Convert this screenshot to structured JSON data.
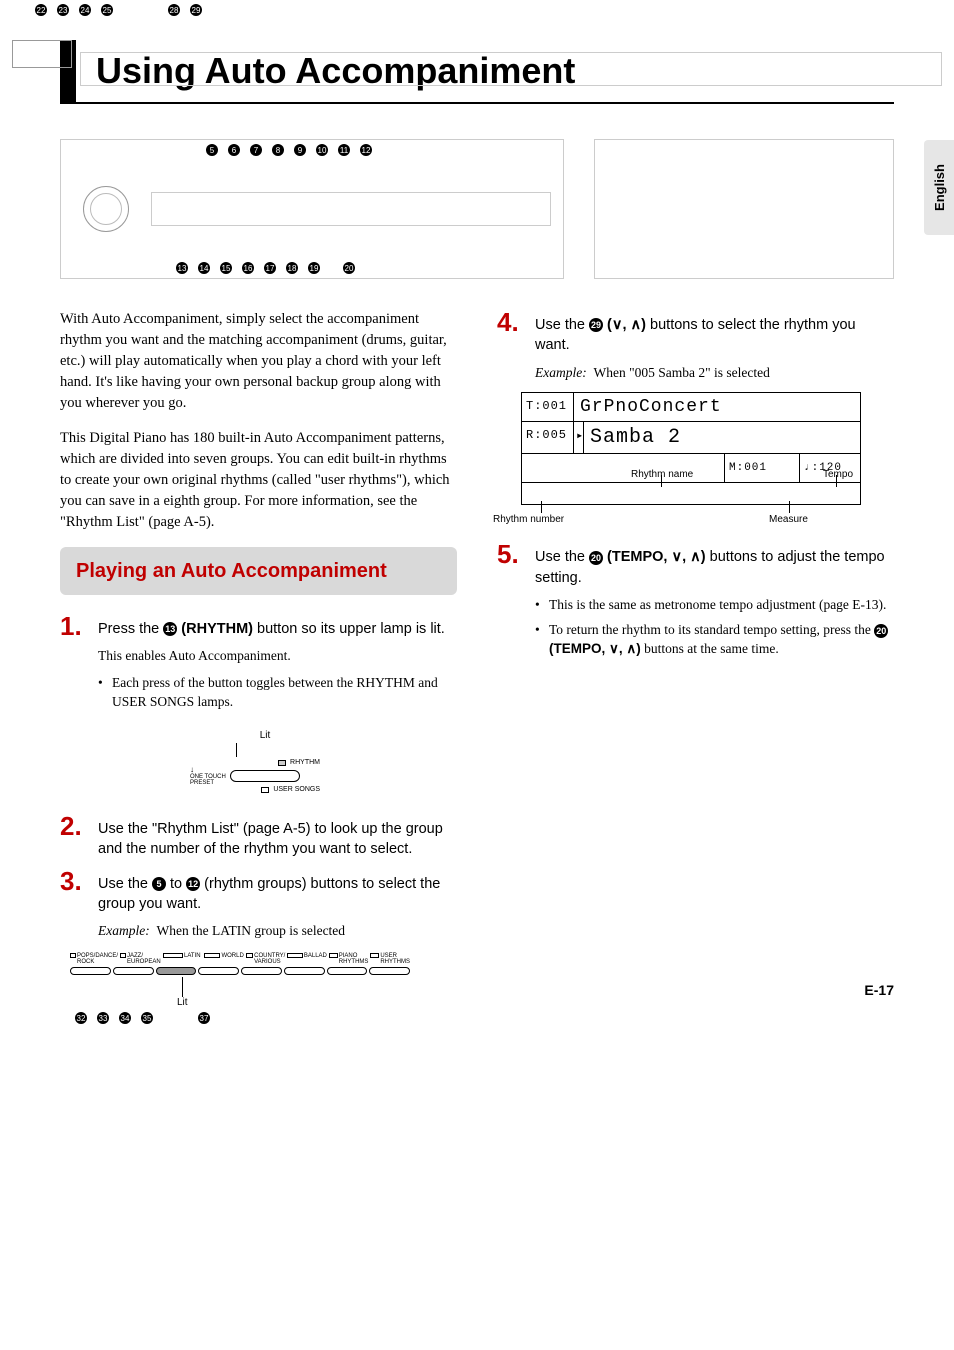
{
  "side_tab": "English",
  "title": "Using Auto Accompaniment",
  "panel_left": {
    "top_nums": [
      5,
      6,
      7,
      8,
      9,
      10,
      11,
      12
    ],
    "bot_nums": [
      13,
      14,
      15,
      16,
      17,
      18,
      19,
      20
    ]
  },
  "panel_right": {
    "top_nums": [
      22,
      23,
      24,
      25,
      28,
      29
    ],
    "bot_nums": [
      32,
      33,
      34,
      35,
      37
    ]
  },
  "intro_p1": "With Auto Accompaniment, simply select the accompaniment rhythm you want and the matching accompaniment (drums, guitar, etc.) will play automatically when you play a chord with your left hand. It's like having your own personal backup group along with you wherever you go.",
  "intro_p2": "This Digital Piano has 180 built-in Auto Accompaniment patterns, which are divided into seven groups. You can edit built-in rhythms to create your own original rhythms (called \"user rhythms\"), which you can save in a eighth group. For more information, see the \"Rhythm List\" (page A-5).",
  "section_head": "Playing an Auto Accompaniment",
  "step1": {
    "num": "1",
    "pre": "Press the ",
    "ref": "13",
    "bold": " (RHYTHM)",
    "post": " button so its upper lamp is lit.",
    "sub": "This enables Auto Accompaniment.",
    "bullet": "Each press of the button toggles between the RHYTHM and USER SONGS lamps."
  },
  "fig_rhythm_btn": {
    "lit": "Lit",
    "rhythm": "RHYTHM",
    "onetouch1": "ONE TOUCH",
    "onetouch2": "PRESET",
    "user": "USER SONGS"
  },
  "step2": {
    "num": "2",
    "text": "Use the \"Rhythm List\" (page A-5) to look up the group and the number of the rhythm you want to select."
  },
  "step3": {
    "num": "3",
    "pre": "Use the ",
    "ref1": "5",
    "mid": " to ",
    "ref2": "12",
    "post": " (rhythm groups) buttons to select the group you want.",
    "example_label": "Example:",
    "example_text": "When the LATIN group is selected"
  },
  "fig_groups": {
    "labels": [
      "POPS/DANCE/\nROCK",
      "JAZZ/\nEUROPEAN",
      "LATIN",
      "WORLD",
      "COUNTRY/\nVARIOUS",
      "BALLAD",
      "PIANO\nRHYTHMS",
      "USER\nRHYTHMS"
    ],
    "lit_index": 2,
    "lit": "Lit"
  },
  "step4": {
    "num": "4",
    "pre": "Use the ",
    "ref": "29",
    "bold": " (∨, ∧)",
    "post": " buttons to select the rhythm you want.",
    "example_label": "Example:",
    "example_text": "When \"005 Samba 2\" is selected"
  },
  "lcd": {
    "t_left": "T:001",
    "t_right": "GrPnoConcert",
    "r_left": "R:005",
    "r_arrow": "▸",
    "r_right": "Samba 2",
    "measure": "M:001",
    "tempo": "♩:120",
    "a_rhythm_num": "Rhythm number",
    "a_rhythm_name": "Rhythm name",
    "a_measure": "Measure",
    "a_tempo": "Tempo"
  },
  "step5": {
    "num": "5",
    "pre": "Use the ",
    "ref": "20",
    "bold": " (TEMPO, ∨, ∧)",
    "post": " buttons to adjust the tempo setting.",
    "bullet1": "This is the same as metronome tempo adjustment (page E-13).",
    "bullet2_pre": "To return the rhythm to its standard tempo setting, press the ",
    "bullet2_ref": "20",
    "bullet2_bold": " (TEMPO, ∨, ∧)",
    "bullet2_post": " buttons at the same time."
  },
  "page_num": "E-17"
}
